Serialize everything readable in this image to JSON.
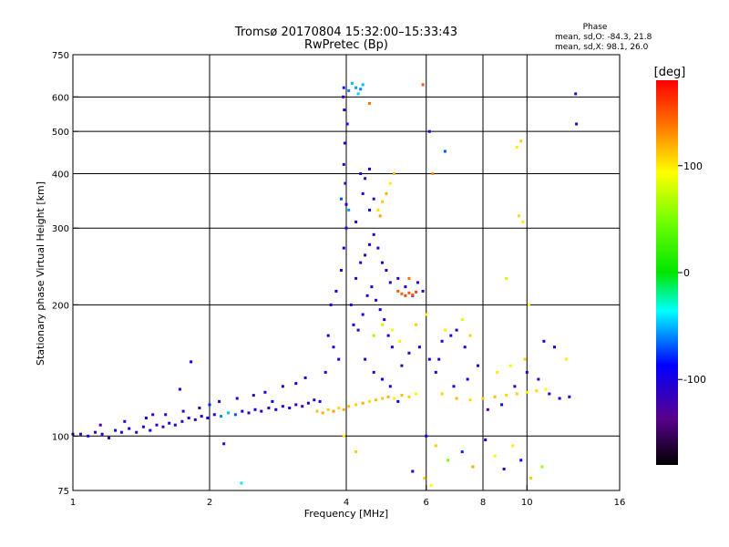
{
  "chart_data": {
    "type": "scatter",
    "title": "Tromsø 20170804 15:32:00–15:33:43",
    "subtitle": "RwPretec (Bp)",
    "xlabel": "Frequency [MHz]",
    "ylabel": "Stationary phase Virtual Height [km]",
    "x_scale": "log",
    "y_scale": "log",
    "xlim": [
      1,
      16
    ],
    "ylim": [
      75,
      750
    ],
    "x_ticks": [
      1,
      2,
      4,
      6,
      8,
      10,
      16
    ],
    "x_grid": [
      2,
      4,
      6,
      8,
      10
    ],
    "y_ticks": [
      75,
      100,
      200,
      300,
      400,
      500,
      600,
      750
    ],
    "y_grid": [
      100,
      200,
      300,
      400,
      500,
      600
    ],
    "grid": true,
    "stats": {
      "heading": "Phase",
      "line_o": "mean, sd,O: -84.3, 21.8",
      "line_x": "mean, sd,X:  98.1, 26.0"
    },
    "colorbar": {
      "label": "[deg]",
      "range": [
        -180,
        180
      ],
      "ticks": [
        100,
        0,
        -100
      ]
    },
    "series": [
      {
        "trace": "o-mode low trace",
        "points": [
          [
            1.0,
            101,
            -120
          ],
          [
            1.04,
            101,
            -110
          ],
          [
            1.08,
            100,
            -100
          ],
          [
            1.12,
            102,
            -115
          ],
          [
            1.16,
            101,
            -105
          ],
          [
            1.2,
            99,
            -120
          ],
          [
            1.24,
            103,
            -95
          ],
          [
            1.28,
            102,
            -110
          ],
          [
            1.33,
            104,
            -100
          ],
          [
            1.38,
            102,
            -115
          ],
          [
            1.43,
            105,
            -105
          ],
          [
            1.48,
            103,
            -90
          ],
          [
            1.53,
            106,
            -110
          ],
          [
            1.58,
            105,
            -120
          ],
          [
            1.63,
            107,
            -100
          ],
          [
            1.68,
            106,
            -95
          ],
          [
            1.74,
            108,
            -110
          ],
          [
            1.8,
            110,
            -105
          ],
          [
            1.86,
            109,
            -115
          ],
          [
            1.92,
            111,
            -100
          ],
          [
            1.98,
            110,
            -90
          ],
          [
            2.05,
            112,
            -105
          ],
          [
            2.12,
            111,
            -60
          ],
          [
            2.2,
            113,
            -50
          ],
          [
            2.28,
            112,
            -70
          ],
          [
            2.36,
            114,
            -100
          ],
          [
            2.44,
            113,
            -110
          ],
          [
            2.52,
            115,
            -95
          ],
          [
            2.6,
            114,
            -105
          ],
          [
            2.7,
            116,
            -115
          ],
          [
            2.8,
            115,
            -100
          ],
          [
            2.9,
            117,
            -110
          ],
          [
            3.0,
            116,
            -95
          ],
          [
            3.1,
            118,
            -105
          ],
          [
            3.2,
            117,
            -120
          ],
          [
            3.3,
            119,
            -100
          ],
          [
            3.4,
            121,
            -110
          ],
          [
            3.5,
            120,
            -95
          ]
        ]
      },
      {
        "trace": "o-mode low scatter",
        "points": [
          [
            1.15,
            106,
            -125
          ],
          [
            1.3,
            108,
            -100
          ],
          [
            1.45,
            110,
            -90
          ],
          [
            1.6,
            112,
            -115
          ],
          [
            1.75,
            114,
            -105
          ],
          [
            1.9,
            116,
            -120
          ],
          [
            1.72,
            128,
            -100
          ],
          [
            2.1,
            120,
            -110
          ],
          [
            2.3,
            122,
            -95
          ],
          [
            2.5,
            124,
            -115
          ],
          [
            2.65,
            126,
            -100
          ],
          [
            2.9,
            130,
            -105
          ],
          [
            3.1,
            132,
            -90
          ],
          [
            3.25,
            136,
            -110
          ],
          [
            1.82,
            148,
            -95
          ],
          [
            2.0,
            118,
            -80
          ],
          [
            2.15,
            96,
            -110
          ],
          [
            2.35,
            78,
            -40
          ],
          [
            1.5,
            112,
            -120
          ],
          [
            2.75,
            120,
            -85
          ]
        ]
      },
      {
        "trace": "x-mode low trace",
        "points": [
          [
            3.45,
            114,
            115
          ],
          [
            3.55,
            113,
            120
          ],
          [
            3.65,
            115,
            110
          ],
          [
            3.75,
            114,
            125
          ],
          [
            3.85,
            116,
            105
          ],
          [
            3.95,
            115,
            120
          ],
          [
            4.05,
            117,
            115
          ],
          [
            4.2,
            118,
            110
          ],
          [
            4.35,
            119,
            120
          ],
          [
            4.5,
            120,
            105
          ],
          [
            4.65,
            121,
            115
          ],
          [
            4.8,
            122,
            110
          ],
          [
            4.95,
            123,
            120
          ],
          [
            5.1,
            122,
            100
          ],
          [
            5.3,
            124,
            115
          ],
          [
            5.5,
            123,
            110
          ],
          [
            5.7,
            125,
            95
          ]
        ]
      },
      {
        "trace": "o-mode rise near 4 MHz",
        "points": [
          [
            3.7,
            200,
            -100
          ],
          [
            3.8,
            215,
            -90
          ],
          [
            3.9,
            240,
            -110
          ],
          [
            3.95,
            270,
            -95
          ],
          [
            4.0,
            300,
            -105
          ],
          [
            4.0,
            340,
            -100
          ],
          [
            3.98,
            380,
            -115
          ],
          [
            3.95,
            420,
            -110
          ],
          [
            3.97,
            470,
            -95
          ],
          [
            4.02,
            520,
            -100
          ],
          [
            3.96,
            560,
            -105
          ],
          [
            3.94,
            600,
            -110
          ],
          [
            3.95,
            630,
            -80
          ],
          [
            4.05,
            620,
            -60
          ],
          [
            4.12,
            645,
            -50
          ],
          [
            4.2,
            630,
            -55
          ],
          [
            4.25,
            610,
            -45
          ],
          [
            4.3,
            625,
            -60
          ],
          [
            4.35,
            640,
            -50
          ],
          [
            3.9,
            350,
            -70
          ],
          [
            4.05,
            330,
            -55
          ],
          [
            3.85,
            150,
            -100
          ],
          [
            3.75,
            160,
            -110
          ],
          [
            3.65,
            170,
            -95
          ],
          [
            3.6,
            140,
            -105
          ]
        ]
      },
      {
        "trace": "o-mode F region",
        "points": [
          [
            4.1,
            200,
            -110
          ],
          [
            4.2,
            230,
            -115
          ],
          [
            4.3,
            250,
            -100
          ],
          [
            4.4,
            260,
            -110
          ],
          [
            4.5,
            275,
            -95
          ],
          [
            4.6,
            290,
            -105
          ],
          [
            4.7,
            270,
            -110
          ],
          [
            4.8,
            250,
            -100
          ],
          [
            4.9,
            240,
            -115
          ],
          [
            5.0,
            225,
            -105
          ],
          [
            4.15,
            180,
            -100
          ],
          [
            4.25,
            175,
            -110
          ],
          [
            4.35,
            190,
            -95
          ],
          [
            4.45,
            210,
            -105
          ],
          [
            4.55,
            220,
            -100
          ],
          [
            4.65,
            205,
            -110
          ],
          [
            4.75,
            195,
            -95
          ],
          [
            4.85,
            185,
            -115
          ],
          [
            4.95,
            170,
            -105
          ],
          [
            5.05,
            160,
            -100
          ],
          [
            4.3,
            400,
            -110
          ],
          [
            4.4,
            390,
            -115
          ],
          [
            4.5,
            410,
            -100
          ],
          [
            4.35,
            360,
            -105
          ],
          [
            4.5,
            330,
            -95
          ],
          [
            4.2,
            310,
            -100
          ],
          [
            4.6,
            350,
            -110
          ],
          [
            5.2,
            230,
            -100
          ],
          [
            5.4,
            220,
            -95
          ],
          [
            5.6,
            210,
            -105
          ],
          [
            5.75,
            225,
            -110
          ],
          [
            5.9,
            215,
            -100
          ],
          [
            4.4,
            150,
            -105
          ],
          [
            4.6,
            140,
            -110
          ],
          [
            4.8,
            135,
            -95
          ],
          [
            5.0,
            130,
            -100
          ],
          [
            5.3,
            145,
            -115
          ],
          [
            5.5,
            155,
            -105
          ],
          [
            5.8,
            160,
            -100
          ],
          [
            6.1,
            150,
            -90
          ],
          [
            6.3,
            140,
            -110
          ],
          [
            6.5,
            165,
            -95
          ],
          [
            6.8,
            170,
            -100
          ],
          [
            7.0,
            175,
            -110
          ],
          [
            7.3,
            160,
            -105
          ]
        ]
      },
      {
        "trace": "x-mode F region",
        "points": [
          [
            4.7,
            330,
            105
          ],
          [
            4.8,
            345,
            110
          ],
          [
            4.9,
            360,
            120
          ],
          [
            5.0,
            380,
            100
          ],
          [
            5.1,
            400,
            115
          ],
          [
            4.75,
            320,
            125
          ],
          [
            5.2,
            215,
            150
          ],
          [
            5.3,
            212,
            145
          ],
          [
            5.4,
            210,
            155
          ],
          [
            5.5,
            213,
            150
          ],
          [
            5.6,
            211,
            145
          ],
          [
            5.7,
            214,
            155
          ],
          [
            5.5,
            230,
            140
          ],
          [
            4.6,
            170,
            60
          ],
          [
            4.8,
            180,
            80
          ],
          [
            5.05,
            175,
            90
          ],
          [
            5.25,
            165,
            100
          ],
          [
            5.7,
            180,
            110
          ],
          [
            6.0,
            190,
            95
          ],
          [
            6.6,
            175,
            100
          ],
          [
            7.2,
            185,
            85
          ],
          [
            7.5,
            170,
            110
          ],
          [
            6.5,
            125,
            110
          ],
          [
            7.0,
            122,
            115
          ],
          [
            7.5,
            121,
            105
          ],
          [
            8.0,
            122,
            110
          ],
          [
            8.5,
            123,
            115
          ],
          [
            9.0,
            124,
            105
          ],
          [
            9.5,
            125,
            110
          ],
          [
            10.0,
            126,
            100
          ],
          [
            10.5,
            127,
            105
          ],
          [
            11.0,
            128,
            95
          ],
          [
            9.7,
            475,
            110
          ],
          [
            9.5,
            460,
            100
          ],
          [
            9.8,
            310,
            100
          ],
          [
            9.6,
            320,
            105
          ],
          [
            5.9,
            640,
            150
          ],
          [
            6.2,
            400,
            130
          ],
          [
            4.5,
            580,
            140
          ]
        ]
      },
      {
        "trace": "mixed scatter high frequencies",
        "points": [
          [
            6.0,
            100,
            -100
          ],
          [
            6.3,
            95,
            110
          ],
          [
            6.7,
            88,
            50
          ],
          [
            7.2,
            92,
            -80
          ],
          [
            7.6,
            85,
            120
          ],
          [
            8.1,
            98,
            -100
          ],
          [
            8.5,
            90,
            90
          ],
          [
            8.9,
            84,
            -110
          ],
          [
            9.3,
            95,
            100
          ],
          [
            9.7,
            88,
            -90
          ],
          [
            10.2,
            80,
            110
          ],
          [
            10.8,
            85,
            60
          ],
          [
            8.2,
            115,
            -120
          ],
          [
            8.8,
            118,
            -95
          ],
          [
            9.4,
            130,
            -110
          ],
          [
            10.0,
            140,
            -100
          ],
          [
            10.6,
            135,
            -115
          ],
          [
            11.2,
            125,
            -100
          ],
          [
            11.8,
            122,
            -105
          ],
          [
            12.4,
            123,
            -110
          ],
          [
            12.2,
            150,
            100
          ],
          [
            11.5,
            160,
            -90
          ],
          [
            10.9,
            165,
            -100
          ],
          [
            9.9,
            150,
            110
          ],
          [
            9.2,
            145,
            90
          ],
          [
            8.6,
            140,
            100
          ],
          [
            7.8,
            145,
            -100
          ],
          [
            7.4,
            135,
            -95
          ],
          [
            6.9,
            130,
            -105
          ],
          [
            6.4,
            150,
            -110
          ],
          [
            9.0,
            230,
            80
          ],
          [
            10.1,
            200,
            90
          ],
          [
            12.8,
            610,
            -120
          ],
          [
            12.85,
            520,
            -110
          ],
          [
            6.6,
            450,
            -70
          ],
          [
            6.1,
            500,
            -95
          ],
          [
            5.95,
            80,
            110
          ],
          [
            6.15,
            77,
            95
          ],
          [
            5.6,
            83,
            -100
          ],
          [
            5.2,
            120,
            -90
          ],
          [
            4.2,
            92,
            110
          ],
          [
            3.95,
            100,
            100
          ]
        ]
      }
    ]
  }
}
